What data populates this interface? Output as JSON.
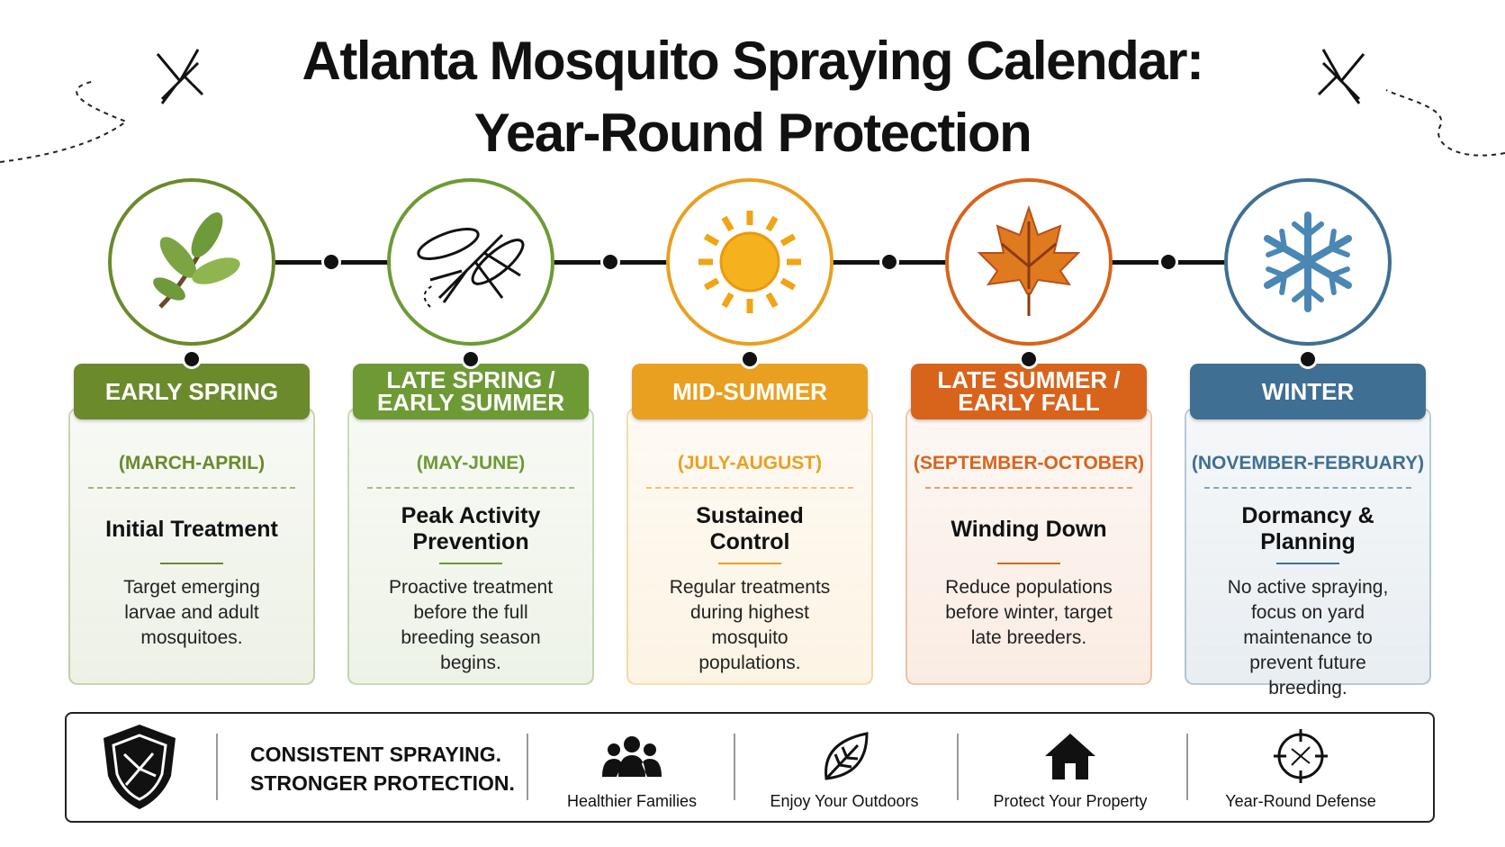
{
  "header": {
    "title": [
      "Atlanta Mosquito Spraying Calendar:",
      "Year-Round Protection"
    ]
  },
  "seasons": [
    {
      "label": [
        "EARLY SPRING"
      ],
      "months": "(MARCH-APRIL)",
      "heading": "Initial Treatment",
      "description": "Target emerging larvae and adult mosquitoes.",
      "color": "#6b8a2c"
    },
    {
      "label": [
        "LATE SPRING /",
        "EARLY SUMMER"
      ],
      "months": "(MAY-JUNE)",
      "heading": "Peak Activity Prevention",
      "description": "Proactive treatment before the full breeding season begins.",
      "color": "#6e9a35"
    },
    {
      "label": [
        "MID-SUMMER"
      ],
      "months": "(JULY-AUGUST)",
      "heading": "Sustained Control",
      "description": "Regular treatments during highest mosquito populations.",
      "color": "#e9a020"
    },
    {
      "label": [
        "LATE SUMMER /",
        "EARLY FALL"
      ],
      "months": "(SEPTEMBER-OCTOBER)",
      "heading": "Winding Down",
      "description": "Reduce populations before winter, target late breeders.",
      "color": "#d8641c"
    },
    {
      "label": [
        "WINTER"
      ],
      "months": "(NOVEMBER-FEBRUARY)",
      "heading": "Dormancy & Planning",
      "description": "No active spraying, focus on yard maintenance to prevent future breeding.",
      "color": "#3f6f93"
    }
  ],
  "footer": {
    "tagline": [
      "CONSISTENT SPRAYING.",
      "STRONGER PROTECTION."
    ],
    "benefits": [
      "Healthier Families",
      "Enjoy Your Outdoors",
      "Protect Your Property",
      "Year-Round Defense"
    ]
  }
}
